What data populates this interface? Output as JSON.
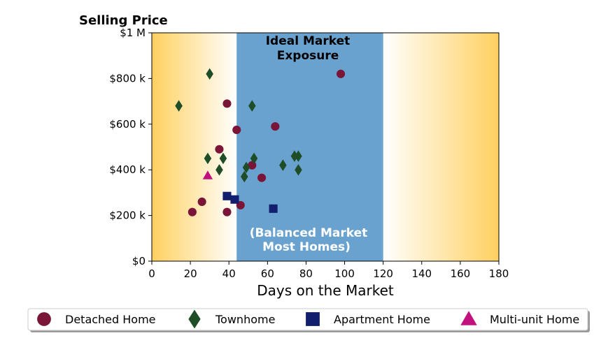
{
  "chart_data": {
    "type": "scatter",
    "title": "Selling Price",
    "xlabel": "Days on the Market",
    "ylabel": "",
    "xlim": [
      0,
      180
    ],
    "ylim": [
      0,
      1000000
    ],
    "x_ticks": [
      0,
      20,
      40,
      60,
      80,
      100,
      120,
      140,
      160,
      180
    ],
    "x_tick_labels": [
      "0",
      "20",
      "40",
      "60",
      "80",
      "100",
      "120",
      "140",
      "160",
      "180"
    ],
    "y_ticks": [
      0,
      200000,
      400000,
      600000,
      800000,
      1000000
    ],
    "y_tick_labels": [
      "$0",
      "$200 k",
      "$400 k",
      "$600 k",
      "$800 k",
      "$1 M"
    ],
    "grid": false,
    "legend_position": "bottom",
    "ideal_range": {
      "x_start": 44,
      "x_end": 120,
      "color": "#6aa2cf"
    },
    "gradient_color": "#ffd060",
    "annotations": {
      "top_line1": "Ideal Market",
      "top_line2": "Exposure",
      "bottom_line1": "(Balanced Market",
      "bottom_line2": "Most Homes)"
    },
    "series": [
      {
        "name": "Detached Home",
        "marker": "circle",
        "color": "#7b1538",
        "points": [
          [
            21,
            215000
          ],
          [
            26,
            260000
          ],
          [
            35,
            490000
          ],
          [
            39,
            690000
          ],
          [
            39,
            215000
          ],
          [
            44,
            575000
          ],
          [
            46,
            245000
          ],
          [
            52,
            420000
          ],
          [
            57,
            365000
          ],
          [
            64,
            590000
          ],
          [
            98,
            820000
          ]
        ]
      },
      {
        "name": "Townhome",
        "marker": "diamond",
        "color": "#1e4d28",
        "points": [
          [
            14,
            680000
          ],
          [
            29,
            450000
          ],
          [
            30,
            820000
          ],
          [
            35,
            400000
          ],
          [
            37,
            450000
          ],
          [
            48,
            370000
          ],
          [
            49,
            410000
          ],
          [
            52,
            680000
          ],
          [
            53,
            450000
          ],
          [
            68,
            420000
          ],
          [
            74,
            460000
          ],
          [
            76,
            460000
          ],
          [
            76,
            400000
          ]
        ]
      },
      {
        "name": "Apartment Home",
        "marker": "square",
        "color": "#111f6e",
        "points": [
          [
            39,
            285000
          ],
          [
            43,
            270000
          ],
          [
            63,
            230000
          ]
        ]
      },
      {
        "name": "Multi-unit Home",
        "marker": "triangle",
        "color": "#c0117e",
        "points": [
          [
            29,
            375000
          ]
        ]
      }
    ]
  }
}
